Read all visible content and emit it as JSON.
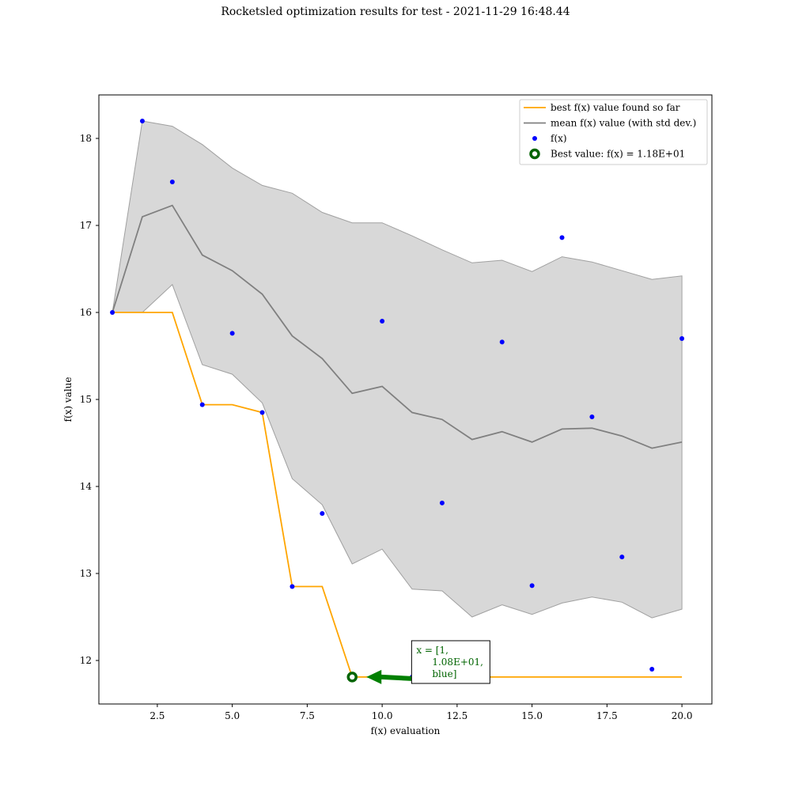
{
  "title": "Rocketsled optimization results for test - 2021-11-29 16:48.44",
  "chart_data": {
    "type": "line",
    "xlabel": "f(x) evaluation",
    "ylabel": "f(x) value",
    "xlim": [
      0.55,
      21.0
    ],
    "ylim": [
      11.5,
      18.5
    ],
    "xticks": [
      2.5,
      5.0,
      7.5,
      10.0,
      12.5,
      15.0,
      17.5,
      20.0
    ],
    "xtick_labels": [
      "2.5",
      "5.0",
      "7.5",
      "10.0",
      "12.5",
      "15.0",
      "17.5",
      "20.0"
    ],
    "yticks": [
      12,
      13,
      14,
      15,
      16,
      17,
      18
    ],
    "ytick_labels": [
      "12",
      "13",
      "14",
      "15",
      "16",
      "17",
      "18"
    ],
    "grid": false,
    "legend_position": "top-right",
    "x": [
      1,
      2,
      3,
      4,
      5,
      6,
      7,
      8,
      9,
      10,
      11,
      12,
      13,
      14,
      15,
      16,
      17,
      18,
      19,
      20
    ],
    "series": [
      {
        "name": "best f(x) value found so far",
        "type": "step",
        "color": "#ffa500",
        "values": [
          16.0,
          16.0,
          16.0,
          14.94,
          14.94,
          14.85,
          12.85,
          12.85,
          11.81,
          11.81,
          11.81,
          11.81,
          11.81,
          11.81,
          11.81,
          11.81,
          11.81,
          11.81,
          11.81,
          11.81
        ]
      },
      {
        "name": "mean f(x) value (with std dev.)",
        "type": "line",
        "color": "#808080",
        "values": [
          16.0,
          17.1,
          17.23,
          16.66,
          16.48,
          16.21,
          15.73,
          15.47,
          15.07,
          15.15,
          14.85,
          14.77,
          14.54,
          14.63,
          14.51,
          14.66,
          14.67,
          14.58,
          14.44,
          14.51
        ],
        "band_upper": [
          16.0,
          18.2,
          18.14,
          17.93,
          17.66,
          17.46,
          17.37,
          17.15,
          17.03,
          17.03,
          16.88,
          16.72,
          16.57,
          16.6,
          16.47,
          16.64,
          16.58,
          16.48,
          16.38,
          16.42
        ],
        "band_lower": [
          16.0,
          16.0,
          16.32,
          15.4,
          15.29,
          14.96,
          14.09,
          13.79,
          13.11,
          13.28,
          12.82,
          12.8,
          12.5,
          12.64,
          12.53,
          12.66,
          12.73,
          12.67,
          12.49,
          12.59
        ],
        "band_color": "#bebebe"
      },
      {
        "name": "f(x)",
        "type": "scatter",
        "color": "#0000ff",
        "values": [
          16.0,
          18.2,
          17.5,
          14.94,
          15.76,
          14.85,
          12.85,
          13.69,
          11.81,
          15.9,
          11.81,
          13.81,
          11.81,
          15.66,
          12.86,
          16.86,
          14.8,
          13.19,
          11.9,
          15.7
        ]
      },
      {
        "name": "Best value: f(x) = 1.18E+01",
        "type": "marker",
        "color": "#006400",
        "x": 9,
        "y": 11.81
      }
    ],
    "annotation": {
      "lines": [
        "x = [1,",
        "1.08E+01,",
        "blue]"
      ],
      "color": "#006400",
      "arrow_color": "#008000",
      "point_x": 9,
      "point_y": 11.81,
      "text_x": 11.8,
      "text_y": 11.81
    }
  }
}
